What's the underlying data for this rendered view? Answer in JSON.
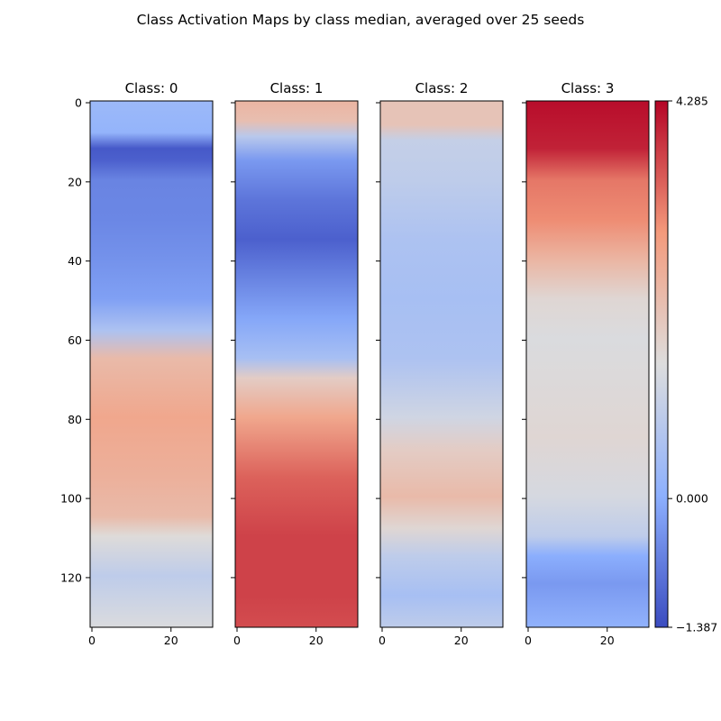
{
  "chart_data": {
    "type": "heatmap",
    "title": "Class Activation Maps by class median, averaged over 25 seeds",
    "colormap": "coolwarm",
    "color_range": [
      -1.387,
      4.285
    ],
    "colorbar_ticks": [
      "4.285",
      "0.000",
      "−1.387"
    ],
    "colorbar_tick_values": [
      4.285,
      0.0,
      -1.387
    ],
    "x_ticks": [
      0,
      20
    ],
    "y_ticks": [
      0,
      20,
      40,
      60,
      80,
      100,
      120
    ],
    "x_range": [
      0,
      31
    ],
    "y_range": [
      0,
      133
    ],
    "grid": false,
    "panels": [
      {
        "title": "Class: 0",
        "profile": [
          [
            0,
            0.3
          ],
          [
            8,
            0.15
          ],
          [
            12,
            -1.2
          ],
          [
            15,
            -1.1
          ],
          [
            20,
            -0.6
          ],
          [
            30,
            -0.55
          ],
          [
            40,
            -0.4
          ],
          [
            50,
            -0.2
          ],
          [
            58,
            0.6
          ],
          [
            65,
            2.2
          ],
          [
            80,
            2.6
          ],
          [
            95,
            2.4
          ],
          [
            105,
            2.2
          ],
          [
            110,
            1.5
          ],
          [
            120,
            0.9
          ],
          [
            133,
            1.4
          ]
        ]
      },
      {
        "title": "Class: 1",
        "profile": [
          [
            0,
            2.3
          ],
          [
            5,
            2.1
          ],
          [
            9,
            0.8
          ],
          [
            15,
            -0.3
          ],
          [
            25,
            -0.8
          ],
          [
            35,
            -1.1
          ],
          [
            45,
            -0.6
          ],
          [
            55,
            -0.1
          ],
          [
            65,
            0.5
          ],
          [
            70,
            1.8
          ],
          [
            80,
            2.6
          ],
          [
            95,
            3.4
          ],
          [
            110,
            3.7
          ],
          [
            125,
            3.7
          ],
          [
            133,
            3.6
          ]
        ]
      },
      {
        "title": "Class: 2",
        "profile": [
          [
            0,
            2.0
          ],
          [
            6,
            2.0
          ],
          [
            10,
            1.0
          ],
          [
            20,
            0.9
          ],
          [
            35,
            0.6
          ],
          [
            50,
            0.5
          ],
          [
            65,
            0.6
          ],
          [
            80,
            1.2
          ],
          [
            88,
            1.8
          ],
          [
            100,
            2.2
          ],
          [
            108,
            1.6
          ],
          [
            115,
            0.9
          ],
          [
            125,
            0.5
          ],
          [
            133,
            0.9
          ]
        ]
      },
      {
        "title": "Class: 3",
        "profile": [
          [
            0,
            4.2
          ],
          [
            12,
            4.0
          ],
          [
            20,
            3.2
          ],
          [
            30,
            3.0
          ],
          [
            40,
            2.3
          ],
          [
            50,
            1.6
          ],
          [
            60,
            1.4
          ],
          [
            85,
            1.6
          ],
          [
            100,
            1.3
          ],
          [
            110,
            0.9
          ],
          [
            115,
            0.0
          ],
          [
            122,
            -0.3
          ],
          [
            133,
            0.1
          ]
        ]
      }
    ]
  }
}
